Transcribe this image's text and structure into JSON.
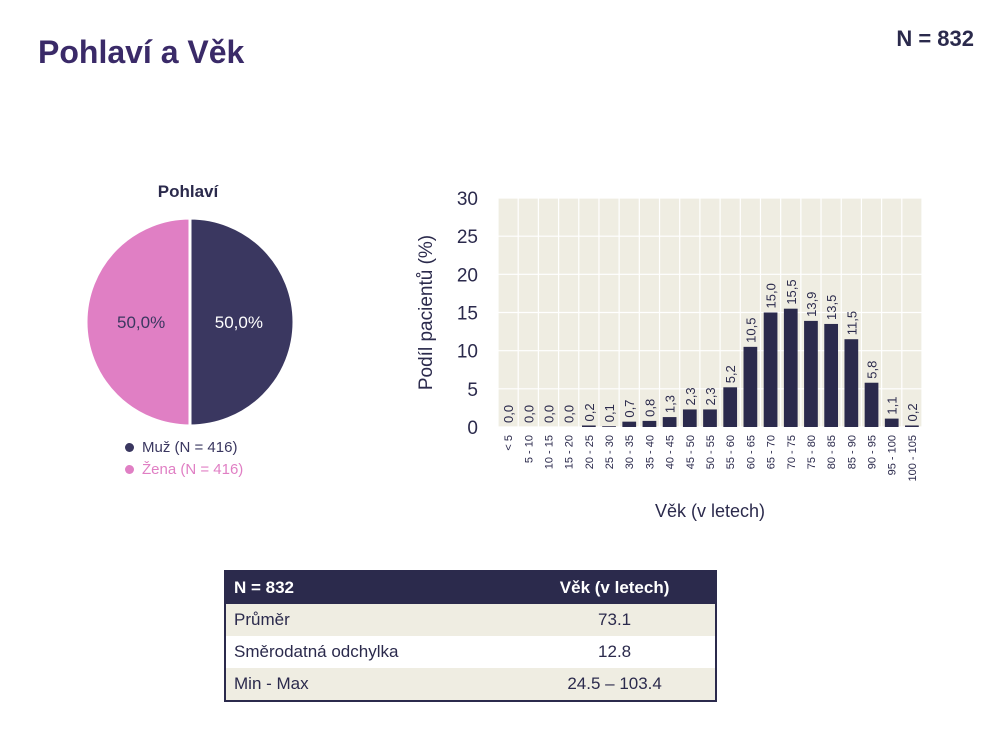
{
  "page": {
    "title": "Pohlaví a Věk",
    "n_label": "N = 832"
  },
  "colors": {
    "muz": "#3a3760",
    "zena": "#e07fc4",
    "bar": "#2b2a4c",
    "plot_bg": "#efede2",
    "title": "#3a2a68"
  },
  "chart_data": [
    {
      "type": "pie",
      "title": "Pohlaví",
      "slices": [
        {
          "label": "Muž (N = 416)",
          "value": 50.0,
          "display": "50,0%"
        },
        {
          "label": "Žena (N = 416)",
          "value": 50.0,
          "display": "50,0%"
        }
      ],
      "legend": "bottom"
    },
    {
      "type": "bar",
      "title": "",
      "xlabel": "Věk (v letech)",
      "ylabel": "Podíl pacientů (%)",
      "ylim": [
        0,
        30
      ],
      "yticks": [
        0,
        5,
        10,
        15,
        20,
        25,
        30
      ],
      "grid": true,
      "categories": [
        "< 5",
        "5 - 10",
        "10 - 15",
        "15 - 20",
        "20 - 25",
        "25 - 30",
        "30 - 35",
        "35 - 40",
        "40 - 45",
        "45 - 50",
        "50 - 55",
        "55 - 60",
        "60 - 65",
        "65 - 70",
        "70 - 75",
        "75 - 80",
        "80 - 85",
        "85 - 90",
        "90 - 95",
        "95 - 100",
        "100 - 105"
      ],
      "values": [
        0.0,
        0.0,
        0.0,
        0.0,
        0.2,
        0.1,
        0.7,
        0.8,
        1.3,
        2.3,
        2.3,
        5.2,
        10.5,
        15.0,
        15.5,
        13.9,
        13.5,
        11.5,
        5.8,
        1.1,
        0.2
      ],
      "labels": [
        "0,0",
        "0,0",
        "0,0",
        "0,0",
        "0,2",
        "0,1",
        "0,7",
        "0,8",
        "1,3",
        "2,3",
        "2,3",
        "5,2",
        "10,5",
        "15,0",
        "15,5",
        "13,9",
        "13,5",
        "11,5",
        "5,8",
        "1,1",
        "0,2"
      ]
    }
  ],
  "table": {
    "headers": [
      "N = 832",
      "Věk (v letech)"
    ],
    "rows": [
      {
        "label": "Průměr",
        "value": "73.1"
      },
      {
        "label": "Směrodatná odchylka",
        "value": "12.8"
      },
      {
        "label": "Min - Max",
        "value": "24.5 – 103.4"
      }
    ]
  }
}
